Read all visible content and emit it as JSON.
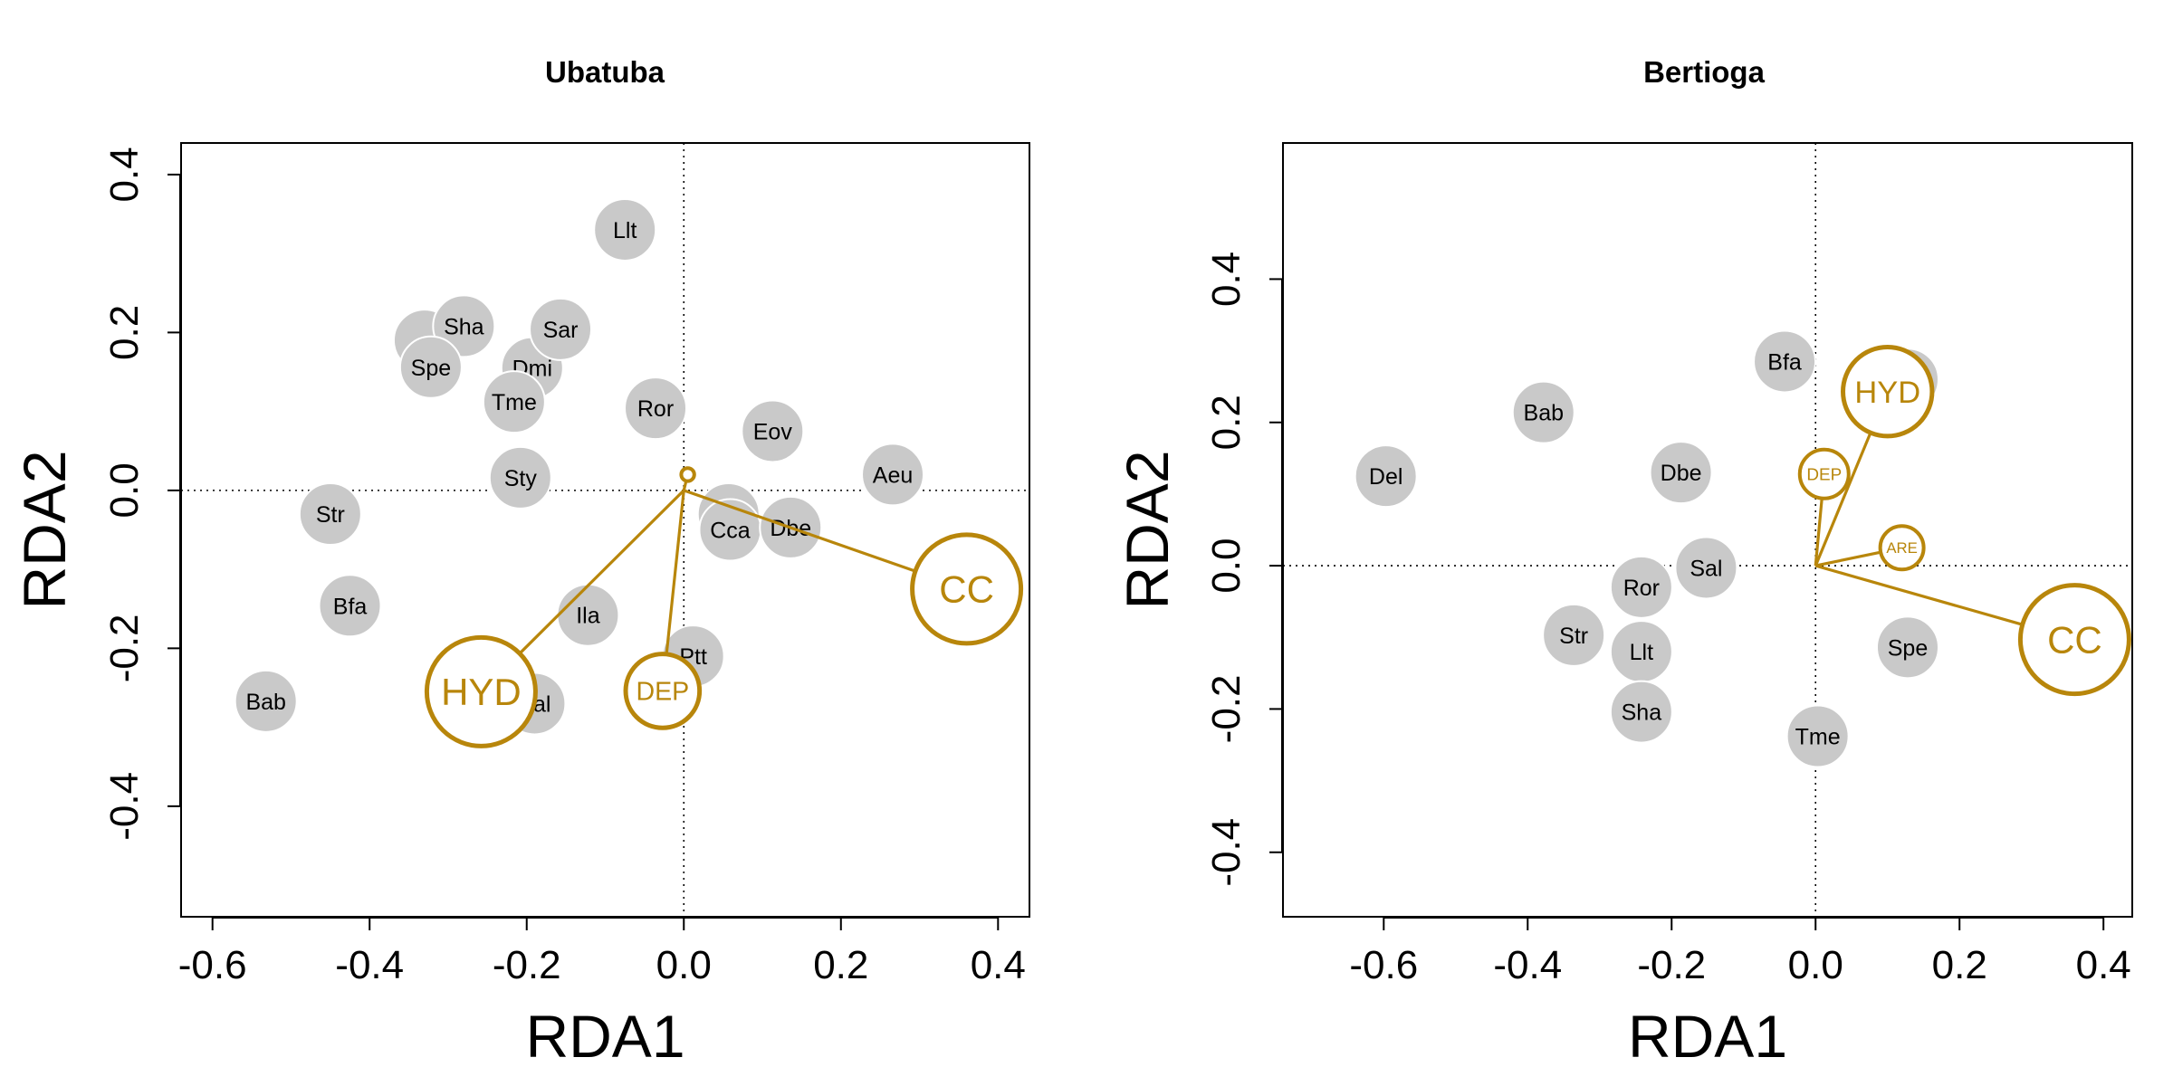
{
  "colors": {
    "species_fill": "#c9c9c9",
    "species_stroke": "#ffffff",
    "env": "#b8860b"
  },
  "chart_data": [
    {
      "type": "scatter",
      "title": "Ubatuba",
      "xlabel": "RDA1",
      "ylabel": "RDA2",
      "xlim": [
        -0.64,
        0.44
      ],
      "ylim": [
        -0.54,
        0.44
      ],
      "xticks": [
        "-0.6",
        "-0.4",
        "-0.2",
        "0.0",
        "0.2",
        "0.4"
      ],
      "yticks": [
        "-0.4",
        "-0.2",
        "0.0",
        "0.2",
        "0.4"
      ],
      "xtick_values": [
        -0.6,
        -0.4,
        -0.2,
        0.0,
        0.2,
        0.4
      ],
      "ytick_values": [
        -0.4,
        -0.2,
        0.0,
        0.2,
        0.4
      ],
      "species": [
        {
          "label": "Llt",
          "x": -0.075,
          "y": 0.33
        },
        {
          "label": "",
          "x": -0.33,
          "y": 0.19
        },
        {
          "label": "Sha",
          "x": -0.28,
          "y": 0.208
        },
        {
          "label": "Dmi",
          "x": -0.193,
          "y": 0.155
        },
        {
          "label": "Sar",
          "x": -0.157,
          "y": 0.204
        },
        {
          "label": "Spe",
          "x": -0.322,
          "y": 0.156
        },
        {
          "label": "Tme",
          "x": -0.216,
          "y": 0.112
        },
        {
          "label": "Ror",
          "x": -0.036,
          "y": 0.104
        },
        {
          "label": "Eov",
          "x": 0.113,
          "y": 0.075
        },
        {
          "label": "Aeu",
          "x": 0.266,
          "y": 0.02
        },
        {
          "label": "Sty",
          "x": -0.208,
          "y": 0.016
        },
        {
          "label": "Str",
          "x": -0.45,
          "y": -0.03
        },
        {
          "label": "",
          "x": 0.057,
          "y": -0.03
        },
        {
          "label": "Cca",
          "x": 0.059,
          "y": -0.05
        },
        {
          "label": "Dbe",
          "x": 0.136,
          "y": -0.047
        },
        {
          "label": "Bfa",
          "x": -0.425,
          "y": -0.146
        },
        {
          "label": "Ila",
          "x": -0.122,
          "y": -0.158
        },
        {
          "label": "Ptt",
          "x": 0.012,
          "y": -0.21
        },
        {
          "label": "Sal",
          "x": -0.19,
          "y": -0.27
        },
        {
          "label": "Bab",
          "x": -0.532,
          "y": -0.267
        }
      ],
      "env_vectors": [
        {
          "label": "HYD",
          "x": -0.258,
          "y": -0.255,
          "size": 1.0
        },
        {
          "label": "DEP",
          "x": -0.027,
          "y": -0.254,
          "size": 0.68
        },
        {
          "label": "CC",
          "x": 0.36,
          "y": -0.125,
          "size": 1.0
        },
        {
          "label": "",
          "x": 0.005,
          "y": 0.02,
          "size": 0.12
        }
      ]
    },
    {
      "type": "scatter",
      "title": "Bertioga",
      "xlabel": "RDA1",
      "ylabel": "RDA2",
      "xlim": [
        -0.74,
        0.44
      ],
      "ylim": [
        -0.49,
        0.59
      ],
      "xticks": [
        "-0.6",
        "-0.4",
        "-0.2",
        "0.0",
        "0.2",
        "0.4"
      ],
      "yticks": [
        "-0.4",
        "-0.2",
        "0.0",
        "0.2",
        "0.4"
      ],
      "xtick_values": [
        -0.6,
        -0.4,
        -0.2,
        0.0,
        0.2,
        0.4
      ],
      "ytick_values": [
        -0.4,
        -0.2,
        0.0,
        0.2,
        0.4
      ],
      "species": [
        {
          "label": "Bfa",
          "x": -0.043,
          "y": 0.285
        },
        {
          "label": "",
          "x": 0.128,
          "y": 0.26
        },
        {
          "label": "Bab",
          "x": -0.378,
          "y": 0.214
        },
        {
          "label": "Del",
          "x": -0.597,
          "y": 0.125
        },
        {
          "label": "Dbe",
          "x": -0.187,
          "y": 0.13
        },
        {
          "label": "Sal",
          "x": -0.152,
          "y": -0.003
        },
        {
          "label": "Ror",
          "x": -0.242,
          "y": -0.03
        },
        {
          "label": "Str",
          "x": -0.336,
          "y": -0.097
        },
        {
          "label": "Llt",
          "x": -0.242,
          "y": -0.12
        },
        {
          "label": "Spe",
          "x": 0.128,
          "y": -0.114
        },
        {
          "label": "Sha",
          "x": -0.242,
          "y": -0.204
        },
        {
          "label": "Tme",
          "x": 0.003,
          "y": -0.238
        }
      ],
      "env_vectors": [
        {
          "label": "HYD",
          "x": 0.1,
          "y": 0.243,
          "size": 0.82
        },
        {
          "label": "DEP",
          "x": 0.012,
          "y": 0.128,
          "size": 0.45
        },
        {
          "label": "ARE",
          "x": 0.12,
          "y": 0.025,
          "size": 0.4
        },
        {
          "label": "CC",
          "x": 0.36,
          "y": -0.103,
          "size": 1.0
        }
      ]
    }
  ]
}
